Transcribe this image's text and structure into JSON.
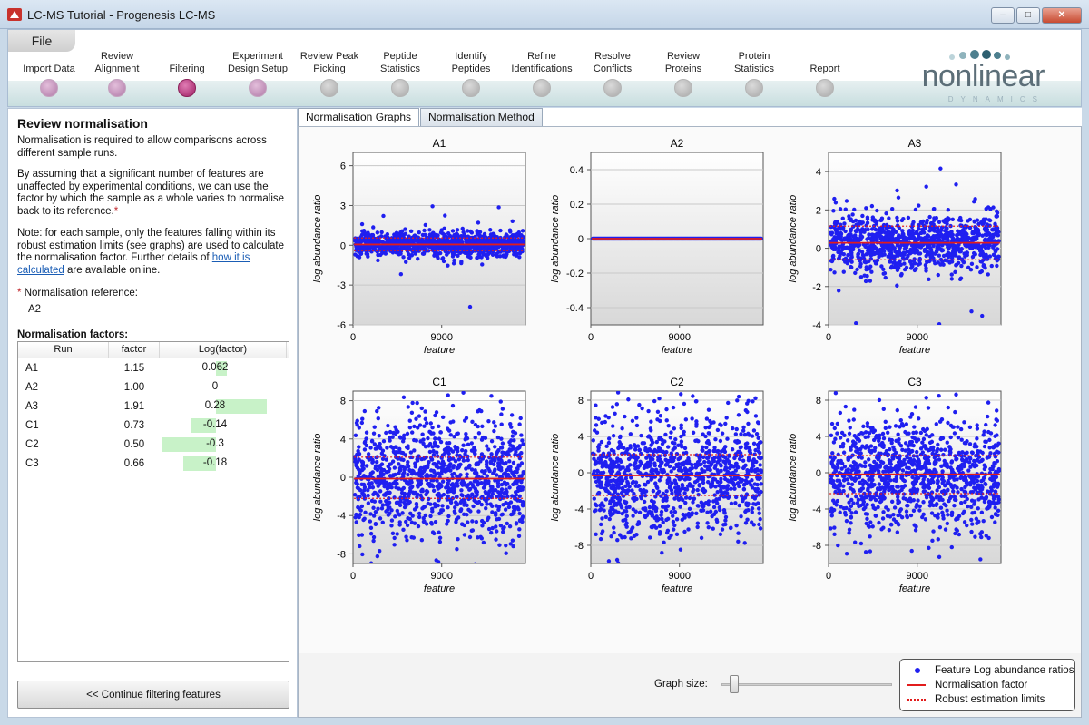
{
  "window": {
    "title": "LC-MS Tutorial - Progenesis LC-MS"
  },
  "ribbon": {
    "file_label": "File",
    "steps": [
      {
        "label": "Import Data",
        "state": "done"
      },
      {
        "label": "Review\nAlignment",
        "state": "done"
      },
      {
        "label": "Filtering",
        "state": "current"
      },
      {
        "label": "Experiment\nDesign Setup",
        "state": "done"
      },
      {
        "label": "Review Peak\nPicking",
        "state": "inactive"
      },
      {
        "label": "Peptide\nStatistics",
        "state": "inactive"
      },
      {
        "label": "Identify\nPeptides",
        "state": "inactive"
      },
      {
        "label": "Refine\nIdentifications",
        "state": "inactive"
      },
      {
        "label": "Resolve\nConflicts",
        "state": "inactive"
      },
      {
        "label": "Review\nProteins",
        "state": "inactive"
      },
      {
        "label": "Protein\nStatistics",
        "state": "inactive"
      },
      {
        "label": "Report",
        "state": "inactive"
      }
    ],
    "logo_text": "nonlinear",
    "logo_subtext": "DYNAMICS"
  },
  "left": {
    "heading": "Review normalisation",
    "para1": "Normalisation is required to allow comparisons across different sample runs.",
    "para2": "By assuming that a significant number of features are unaffected by experimental conditions, we can use the factor by which the sample as a whole varies to normalise back to its reference.",
    "para3_pre": "Note: for each sample, only the features falling within its robust estimation limits (see graphs) are used to calculate the normalisation factor. Further details of",
    "para3_link": "how it is calculated",
    "para3_post": "are available online.",
    "ref_label": "Normalisation reference:",
    "ref_value": "A2",
    "factors_label": "Normalisation factors:",
    "table_headers": [
      "Run",
      "factor",
      "Log(factor)"
    ],
    "rows": [
      {
        "run": "A1",
        "factor": "1.15",
        "log": "0.062",
        "logval": 0.062
      },
      {
        "run": "A2",
        "factor": "1.00",
        "log": "0",
        "logval": 0
      },
      {
        "run": "A3",
        "factor": "1.91",
        "log": "0.28",
        "logval": 0.28
      },
      {
        "run": "C1",
        "factor": "0.73",
        "log": "-0.14",
        "logval": -0.14
      },
      {
        "run": "C2",
        "factor": "0.50",
        "log": "-0.3",
        "logval": -0.3
      },
      {
        "run": "C3",
        "factor": "0.66",
        "log": "-0.18",
        "logval": -0.18
      }
    ],
    "continue_label": "<< Continue filtering features"
  },
  "tabs": [
    {
      "label": "Normalisation Graphs",
      "active": true
    },
    {
      "label": "Normalisation Method",
      "active": false
    }
  ],
  "chart_data": [
    {
      "type": "scatter",
      "title": "A1",
      "xlabel": "feature",
      "ylabel": "log abundance ratio",
      "xlim": [
        0,
        17500
      ],
      "xticks": [
        0,
        9000
      ],
      "ylim": [
        -6,
        7
      ],
      "yticks": [
        -6,
        -3,
        0,
        3,
        6
      ],
      "normalisation_factor": 0.06,
      "robust_limits": [
        -0.4,
        0.55
      ],
      "spread": 1.0
    },
    {
      "type": "scatter",
      "title": "A2",
      "xlabel": "feature",
      "ylabel": "log abundance ratio",
      "xlim": [
        0,
        17500
      ],
      "xticks": [
        0,
        9000
      ],
      "ylim": [
        -0.5,
        0.5
      ],
      "yticks": [
        -0.4,
        -0.2,
        0,
        0.2,
        0.4
      ],
      "normalisation_factor": 0,
      "robust_limits": [
        0,
        0
      ],
      "spread": 0
    },
    {
      "type": "scatter",
      "title": "A3",
      "xlabel": "feature",
      "ylabel": "log abundance ratio",
      "xlim": [
        0,
        17500
      ],
      "xticks": [
        0,
        9000
      ],
      "ylim": [
        -4,
        5
      ],
      "yticks": [
        -4,
        -2,
        0,
        2,
        4
      ],
      "normalisation_factor": 0.28,
      "robust_limits": [
        -0.6,
        1.15
      ],
      "spread": 0.9
    },
    {
      "type": "scatter",
      "title": "C1",
      "xlabel": "feature",
      "ylabel": "log abundance ratio",
      "xlim": [
        0,
        17500
      ],
      "xticks": [
        0,
        9000
      ],
      "ylim": [
        -9,
        9
      ],
      "yticks": [
        -8,
        -4,
        0,
        4,
        8
      ],
      "normalisation_factor": -0.14,
      "robust_limits": [
        -2.2,
        2.1
      ],
      "spread": 1.6
    },
    {
      "type": "scatter",
      "title": "C2",
      "xlabel": "feature",
      "ylabel": "log abundance ratio",
      "xlim": [
        0,
        17500
      ],
      "xticks": [
        0,
        9000
      ],
      "ylim": [
        -10,
        9
      ],
      "yticks": [
        -8,
        -4,
        0,
        4,
        8
      ],
      "normalisation_factor": -0.3,
      "robust_limits": [
        -2.5,
        2.0
      ],
      "spread": 1.6
    },
    {
      "type": "scatter",
      "title": "C3",
      "xlabel": "feature",
      "ylabel": "log abundance ratio",
      "xlim": [
        0,
        17500
      ],
      "xticks": [
        0,
        9000
      ],
      "ylim": [
        -10,
        9
      ],
      "yticks": [
        -8,
        -4,
        0,
        4,
        8
      ],
      "normalisation_factor": -0.18,
      "robust_limits": [
        -2.3,
        1.9
      ],
      "spread": 1.6
    }
  ],
  "graph_size": {
    "label": "Graph size:",
    "value": 0.05
  },
  "legend": {
    "items": [
      {
        "label": "Feature Log abundance ratios",
        "symbol": "dot"
      },
      {
        "label": "Normalisation factor",
        "symbol": "line"
      },
      {
        "label": "Robust estimation limits",
        "symbol": "dotted"
      }
    ]
  },
  "colors": {
    "points": "#1f1ff0",
    "factor_line": "#e21c1c",
    "accent": "#9e2064"
  }
}
